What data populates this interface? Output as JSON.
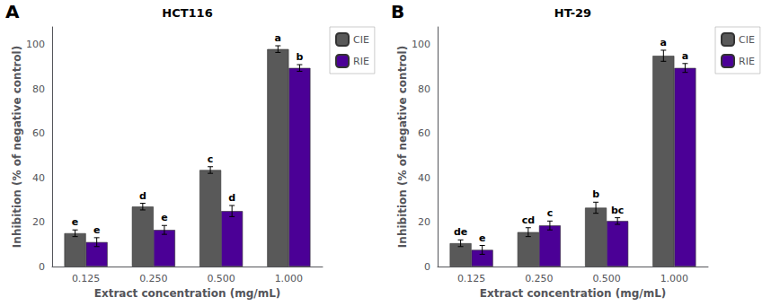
{
  "chart_data": [
    {
      "type": "bar",
      "title": "HCT116",
      "panel_label": "A",
      "xlabel": "Extract concentration (mg/mL)",
      "ylabel": "Inhibition (% of negative control)",
      "categories": [
        "0.125",
        "0.250",
        "0.500",
        "1.000"
      ],
      "series": [
        {
          "name": "CIE",
          "color": "#595959",
          "values": [
            15.0,
            27.0,
            43.5,
            98.0
          ],
          "errors": [
            1.5,
            1.5,
            1.5,
            1.5
          ],
          "labels": [
            "e",
            "d",
            "c",
            "a"
          ]
        },
        {
          "name": "RIE",
          "color": "#4B0096",
          "values": [
            11.0,
            16.5,
            25.0,
            89.5
          ],
          "errors": [
            2.0,
            2.0,
            2.5,
            1.5
          ],
          "labels": [
            "e",
            "e",
            "d",
            "b"
          ]
        }
      ],
      "ylim": [
        0,
        108
      ],
      "yticks": [
        0,
        20,
        40,
        60,
        80,
        100
      ],
      "grid": false,
      "legend": "right"
    },
    {
      "type": "bar",
      "title": "HT-29",
      "panel_label": "B",
      "xlabel": "Extract concentration (mg/mL)",
      "ylabel": "Inhibition (% of negative control)",
      "categories": [
        "0.125",
        "0.250",
        "0.500",
        "1.000"
      ],
      "series": [
        {
          "name": "CIE",
          "color": "#595959",
          "values": [
            10.5,
            15.5,
            26.5,
            95.0
          ],
          "errors": [
            1.5,
            2.0,
            2.5,
            2.5
          ],
          "labels": [
            "de",
            "cd",
            "b",
            "a"
          ]
        },
        {
          "name": "RIE",
          "color": "#4B0096",
          "values": [
            7.5,
            18.5,
            20.5,
            89.5
          ],
          "errors": [
            2.0,
            2.0,
            1.5,
            2.0
          ],
          "labels": [
            "e",
            "c",
            "bc",
            "a"
          ]
        }
      ],
      "ylim": [
        0,
        108
      ],
      "yticks": [
        0,
        20,
        40,
        60,
        80,
        100
      ],
      "grid": false,
      "legend": "right"
    }
  ]
}
